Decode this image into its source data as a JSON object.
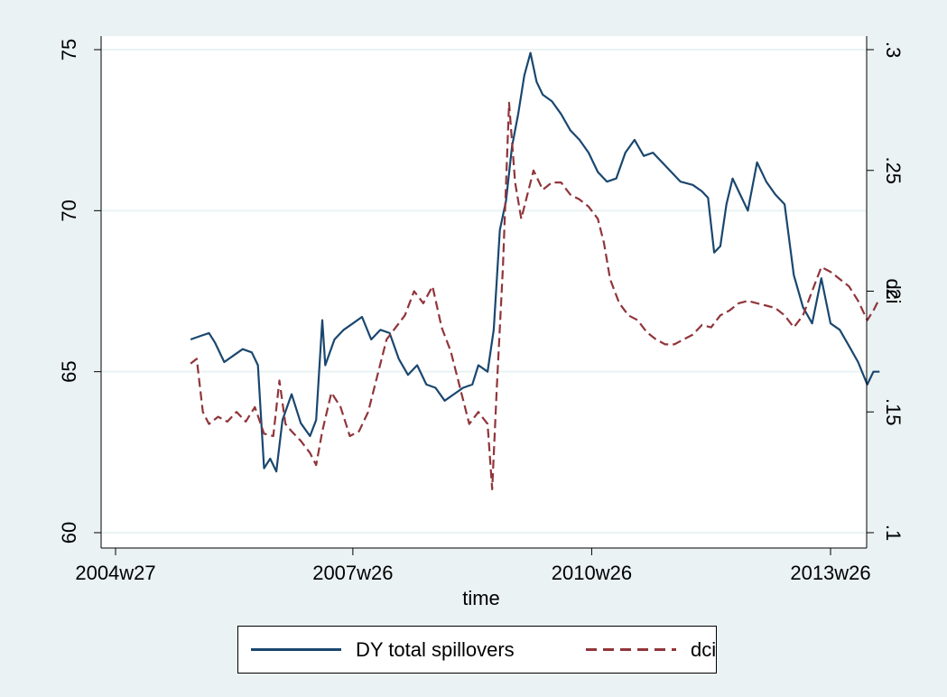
{
  "chart_data": {
    "type": "line",
    "xlabel": "time",
    "ylabel_left": "",
    "ylabel_right": "dci",
    "x_ticks": [
      "2004w27",
      "2007w26",
      "2010w26",
      "2013w26"
    ],
    "x_range": [
      "2004w27",
      "2014w06"
    ],
    "y_left_ticks": [
      60,
      65,
      70,
      75
    ],
    "y_left_range": [
      59.8,
      75.3
    ],
    "y_right_ticks": [
      ".1",
      ".15",
      ".2",
      ".25",
      ".3"
    ],
    "y_right_range": [
      0.1,
      0.3
    ],
    "grid": true,
    "legend_position": "bottom",
    "series": [
      {
        "name": "DY total spillovers",
        "axis": "left",
        "color": "#1a476f",
        "dash": "solid",
        "points": [
          [
            "2005w24",
            66.0
          ],
          [
            "2005w30",
            66.1
          ],
          [
            "2005w36",
            66.2
          ],
          [
            "2005w40",
            65.9
          ],
          [
            "2005w46",
            65.3
          ],
          [
            "2005w52",
            65.5
          ],
          [
            "2006w06",
            65.7
          ],
          [
            "2006w12",
            65.6
          ],
          [
            "2006w16",
            65.2
          ],
          [
            "2006w20",
            62.0
          ],
          [
            "2006w24",
            62.3
          ],
          [
            "2006w28",
            61.9
          ],
          [
            "2006w32",
            63.5
          ],
          [
            "2006w38",
            64.3
          ],
          [
            "2006w44",
            63.4
          ],
          [
            "2006w50",
            63.0
          ],
          [
            "2007w02",
            63.5
          ],
          [
            "2007w06",
            66.6
          ],
          [
            "2007w08",
            65.2
          ],
          [
            "2007w14",
            66.0
          ],
          [
            "2007w20",
            66.3
          ],
          [
            "2007w26",
            66.5
          ],
          [
            "2007w32",
            66.7
          ],
          [
            "2007w38",
            66.0
          ],
          [
            "2007w44",
            66.3
          ],
          [
            "2007w50",
            66.2
          ],
          [
            "2008w04",
            65.4
          ],
          [
            "2008w10",
            64.9
          ],
          [
            "2008w16",
            65.2
          ],
          [
            "2008w22",
            64.6
          ],
          [
            "2008w28",
            64.5
          ],
          [
            "2008w34",
            64.1
          ],
          [
            "2008w40",
            64.3
          ],
          [
            "2008w46",
            64.5
          ],
          [
            "2008w52",
            64.6
          ],
          [
            "2009w04",
            65.2
          ],
          [
            "2009w10",
            65.0
          ],
          [
            "2009w14",
            66.3
          ],
          [
            "2009w18",
            69.4
          ],
          [
            "2009w22",
            70.3
          ],
          [
            "2009w26",
            72.0
          ],
          [
            "2009w30",
            73.0
          ],
          [
            "2009w34",
            74.2
          ],
          [
            "2009w38",
            74.9
          ],
          [
            "2009w42",
            74.0
          ],
          [
            "2009w46",
            73.6
          ],
          [
            "2009w52",
            73.4
          ],
          [
            "2010w06",
            73.0
          ],
          [
            "2010w12",
            72.5
          ],
          [
            "2010w18",
            72.2
          ],
          [
            "2010w24",
            71.8
          ],
          [
            "2010w30",
            71.2
          ],
          [
            "2010w36",
            70.9
          ],
          [
            "2010w42",
            71.0
          ],
          [
            "2010w48",
            71.8
          ],
          [
            "2011w02",
            72.2
          ],
          [
            "2011w08",
            71.7
          ],
          [
            "2011w14",
            71.8
          ],
          [
            "2011w20",
            71.5
          ],
          [
            "2011w26",
            71.2
          ],
          [
            "2011w32",
            70.9
          ],
          [
            "2011w40",
            70.8
          ],
          [
            "2011w46",
            70.6
          ],
          [
            "2011w50",
            70.4
          ],
          [
            "2012w02",
            68.7
          ],
          [
            "2012w06",
            68.9
          ],
          [
            "2012w10",
            70.2
          ],
          [
            "2012w14",
            71.0
          ],
          [
            "2012w18",
            70.6
          ],
          [
            "2012w24",
            70.0
          ],
          [
            "2012w30",
            71.5
          ],
          [
            "2012w36",
            70.9
          ],
          [
            "2012w42",
            70.5
          ],
          [
            "2012w48",
            70.2
          ],
          [
            "2013w02",
            68.0
          ],
          [
            "2013w08",
            67.0
          ],
          [
            "2013w14",
            66.5
          ],
          [
            "2013w20",
            67.9
          ],
          [
            "2013w26",
            66.5
          ],
          [
            "2013w32",
            66.3
          ],
          [
            "2013w38",
            65.8
          ],
          [
            "2013w44",
            65.3
          ],
          [
            "2013w50",
            64.6
          ],
          [
            "2014w02",
            65.0
          ],
          [
            "2014w06",
            65.0
          ]
        ]
      },
      {
        "name": "dci",
        "axis": "right",
        "color": "#90353b",
        "dash": "dashed",
        "points": [
          [
            "2005w24",
            0.17
          ],
          [
            "2005w28",
            0.172
          ],
          [
            "2005w32",
            0.15
          ],
          [
            "2005w36",
            0.145
          ],
          [
            "2005w42",
            0.148
          ],
          [
            "2005w48",
            0.146
          ],
          [
            "2006w02",
            0.15
          ],
          [
            "2006w08",
            0.146
          ],
          [
            "2006w14",
            0.152
          ],
          [
            "2006w20",
            0.141
          ],
          [
            "2006w26",
            0.14
          ],
          [
            "2006w30",
            0.163
          ],
          [
            "2006w34",
            0.145
          ],
          [
            "2006w38",
            0.142
          ],
          [
            "2006w44",
            0.138
          ],
          [
            "2006w50",
            0.133
          ],
          [
            "2007w02",
            0.128
          ],
          [
            "2007w06",
            0.142
          ],
          [
            "2007w12",
            0.158
          ],
          [
            "2007w18",
            0.152
          ],
          [
            "2007w24",
            0.14
          ],
          [
            "2007w30",
            0.142
          ],
          [
            "2007w36",
            0.15
          ],
          [
            "2007w42",
            0.165
          ],
          [
            "2007w48",
            0.18
          ],
          [
            "2008w02",
            0.185
          ],
          [
            "2008w08",
            0.19
          ],
          [
            "2008w14",
            0.2
          ],
          [
            "2008w20",
            0.195
          ],
          [
            "2008w26",
            0.202
          ],
          [
            "2008w32",
            0.185
          ],
          [
            "2008w38",
            0.175
          ],
          [
            "2008w44",
            0.16
          ],
          [
            "2008w50",
            0.145
          ],
          [
            "2009w04",
            0.15
          ],
          [
            "2009w10",
            0.145
          ],
          [
            "2009w13",
            0.118
          ],
          [
            "2009w16",
            0.16
          ],
          [
            "2009w20",
            0.21
          ],
          [
            "2009w24",
            0.278
          ],
          [
            "2009w28",
            0.245
          ],
          [
            "2009w32",
            0.23
          ],
          [
            "2009w36",
            0.24
          ],
          [
            "2009w40",
            0.25
          ],
          [
            "2009w46",
            0.242
          ],
          [
            "2009w52",
            0.245
          ],
          [
            "2010w06",
            0.245
          ],
          [
            "2010w12",
            0.24
          ],
          [
            "2010w18",
            0.238
          ],
          [
            "2010w24",
            0.235
          ],
          [
            "2010w30",
            0.23
          ],
          [
            "2010w34",
            0.22
          ],
          [
            "2010w38",
            0.205
          ],
          [
            "2010w44",
            0.195
          ],
          [
            "2010w50",
            0.19
          ],
          [
            "2011w04",
            0.188
          ],
          [
            "2011w10",
            0.183
          ],
          [
            "2011w16",
            0.18
          ],
          [
            "2011w22",
            0.178
          ],
          [
            "2011w28",
            0.178
          ],
          [
            "2011w34",
            0.18
          ],
          [
            "2011w40",
            0.182
          ],
          [
            "2011w46",
            0.186
          ],
          [
            "2011w52",
            0.185
          ],
          [
            "2012w06",
            0.19
          ],
          [
            "2012w12",
            0.192
          ],
          [
            "2012w18",
            0.195
          ],
          [
            "2012w24",
            0.196
          ],
          [
            "2012w30",
            0.195
          ],
          [
            "2012w36",
            0.194
          ],
          [
            "2012w42",
            0.193
          ],
          [
            "2012w48",
            0.19
          ],
          [
            "2013w02",
            0.185
          ],
          [
            "2013w08",
            0.19
          ],
          [
            "2013w14",
            0.2
          ],
          [
            "2013w20",
            0.21
          ],
          [
            "2013w26",
            0.208
          ],
          [
            "2013w32",
            0.205
          ],
          [
            "2013w38",
            0.202
          ],
          [
            "2013w44",
            0.196
          ],
          [
            "2013w50",
            0.188
          ],
          [
            "2014w02",
            0.192
          ],
          [
            "2014w06",
            0.197
          ]
        ]
      }
    ]
  }
}
